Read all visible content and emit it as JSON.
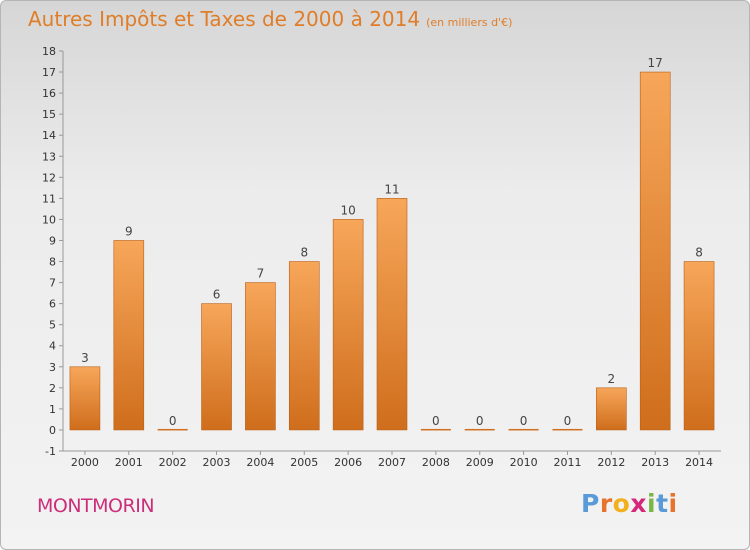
{
  "header": {
    "title": "Autres Impôts et Taxes de 2000 à 2014",
    "subtitle": "(en milliers d'€)"
  },
  "footer": {
    "commune": "MONTMORIN",
    "logo_letters": [
      "P",
      "r",
      "o",
      "x",
      "i",
      "t",
      "i"
    ],
    "logo_colors": [
      "#5a9ad6",
      "#e8732a",
      "#f2b01e",
      "#d6287a",
      "#7ab648",
      "#5a9ad6",
      "#e8732a"
    ]
  },
  "colors": {
    "bar_light": "#f7a65a",
    "bar_dark": "#cf6e1c",
    "title": "#e07d28",
    "commune": "#cc2f7a"
  },
  "chart_data": {
    "type": "bar",
    "title": "Autres Impôts et Taxes de 2000 à 2014",
    "subtitle": "(en milliers d'€)",
    "categories": [
      "2000",
      "2001",
      "2002",
      "2003",
      "2004",
      "2005",
      "2006",
      "2007",
      "2008",
      "2009",
      "2010",
      "2011",
      "2012",
      "2013",
      "2014"
    ],
    "values": [
      3,
      9,
      0,
      6,
      7,
      8,
      10,
      11,
      0,
      0,
      0,
      0,
      2,
      17,
      8
    ],
    "data_labels": [
      "3",
      "9",
      "0",
      "6",
      "7",
      "8",
      "10",
      "11",
      "0",
      "0",
      "0",
      "0",
      "2",
      "17",
      "8"
    ],
    "ylim": [
      -1,
      18
    ],
    "yticks": [
      -1,
      0,
      1,
      2,
      3,
      4,
      5,
      6,
      7,
      8,
      9,
      10,
      11,
      12,
      13,
      14,
      15,
      16,
      17,
      18
    ],
    "grid": false,
    "legend": "none"
  }
}
